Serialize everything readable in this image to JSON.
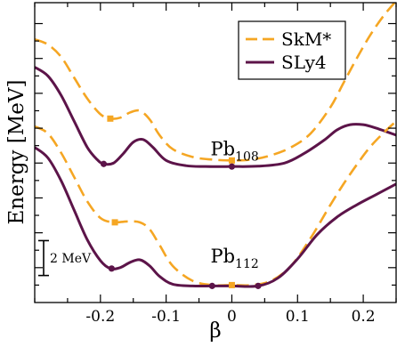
{
  "chart_data": {
    "type": "line",
    "xlabel": "β",
    "ylabel": "Energy [MeV]",
    "xlim": [
      -0.3,
      0.25
    ],
    "xticks": [
      {
        "value": -0.2,
        "label": "-0.2"
      },
      {
        "value": -0.1,
        "label": "-0.1"
      },
      {
        "value": 0,
        "label": "0"
      },
      {
        "value": 0.1,
        "label": "0.1"
      },
      {
        "value": 0.2,
        "label": "0.2"
      }
    ],
    "y_units_note": "relative energy; scale bar = 2 MeV",
    "ylim": [
      0,
      17.2
    ],
    "grid": false,
    "legend_position": "top-right",
    "legend": [
      {
        "key": "skm",
        "label": "SkM*",
        "style": "dashed",
        "color": "#f5a623"
      },
      {
        "key": "sly4",
        "label": "SLy4",
        "style": "solid",
        "color": "#5c1449"
      }
    ],
    "scale_bar": {
      "label": "2 MeV",
      "value": 2,
      "y_from": 1.55,
      "y_to": 3.55
    },
    "panels": [
      {
        "nucleus": "Pb",
        "mass_number": "108",
        "label_at": {
          "x": 0.0,
          "y": 8.45
        },
        "series": [
          {
            "key": "skm",
            "name": "SkM*",
            "x": [
              -0.3,
              -0.28,
              -0.26,
              -0.24,
              -0.22,
              -0.2,
              -0.185,
              -0.17,
              -0.155,
              -0.14,
              -0.125,
              -0.11,
              -0.09,
              -0.06,
              -0.03,
              0.0,
              0.03,
              0.06,
              0.09,
              0.12,
              0.15,
              0.17,
              0.19,
              0.21,
              0.23,
              0.25
            ],
            "y": [
              15.1,
              14.8,
              14.1,
              12.9,
              11.7,
              10.8,
              10.55,
              10.6,
              10.9,
              11.0,
              10.5,
              9.6,
              8.8,
              8.35,
              8.2,
              8.15,
              8.2,
              8.45,
              8.9,
              9.7,
              11.2,
              12.6,
              14.0,
              15.3,
              16.4,
              17.3
            ]
          },
          {
            "key": "sly4",
            "name": "SLy4",
            "x": [
              -0.3,
              -0.28,
              -0.26,
              -0.24,
              -0.22,
              -0.205,
              -0.195,
              -0.18,
              -0.165,
              -0.15,
              -0.135,
              -0.12,
              -0.1,
              -0.07,
              -0.04,
              0.0,
              0.04,
              0.08,
              0.11,
              0.14,
              0.16,
              0.18,
              0.2,
              0.22,
              0.25
            ],
            "y": [
              13.5,
              13.0,
              11.9,
              10.4,
              8.9,
              8.2,
              7.95,
              8.0,
              8.55,
              9.2,
              9.35,
              8.9,
              8.15,
              7.85,
              7.8,
              7.8,
              7.82,
              8.0,
              8.55,
              9.3,
              9.9,
              10.2,
              10.2,
              10.0,
              9.6
            ]
          }
        ],
        "markers": [
          {
            "series": "skm",
            "shape": "square",
            "x": -0.185,
            "y": 10.55
          },
          {
            "series": "skm",
            "shape": "square",
            "x": 0.0,
            "y": 8.15
          },
          {
            "series": "sly4",
            "shape": "circle",
            "x": -0.195,
            "y": 7.95
          },
          {
            "series": "sly4",
            "shape": "circle",
            "x": 0.0,
            "y": 7.8
          }
        ]
      },
      {
        "nucleus": "Pb",
        "mass_number": "112",
        "label_at": {
          "x": 0.0,
          "y": 2.3
        },
        "series": [
          {
            "key": "skm",
            "name": "SkM*",
            "x": [
              -0.3,
              -0.28,
              -0.26,
              -0.24,
              -0.22,
              -0.2,
              -0.18,
              -0.16,
              -0.14,
              -0.125,
              -0.11,
              -0.09,
              -0.06,
              -0.03,
              0.0,
              0.03,
              0.06,
              0.09,
              0.12,
              0.15,
              0.17,
              0.19,
              0.21,
              0.23,
              0.25
            ],
            "y": [
              10.1,
              9.7,
              8.6,
              7.2,
              5.8,
              4.85,
              4.6,
              4.65,
              4.6,
              4.2,
              3.3,
              2.1,
              1.25,
              1.0,
              1.0,
              1.0,
              1.25,
              2.1,
              3.7,
              5.6,
              6.8,
              7.9,
              8.9,
              9.7,
              10.4
            ]
          },
          {
            "key": "sly4",
            "name": "SLy4",
            "x": [
              -0.3,
              -0.28,
              -0.26,
              -0.24,
              -0.22,
              -0.2,
              -0.185,
              -0.17,
              -0.155,
              -0.14,
              -0.125,
              -0.11,
              -0.09,
              -0.06,
              -0.03,
              0.0,
              0.04,
              0.07,
              0.1,
              0.13,
              0.16,
              0.19,
              0.22,
              0.25
            ],
            "y": [
              8.9,
              8.3,
              7.0,
              5.3,
              3.6,
              2.4,
              1.95,
              2.0,
              2.3,
              2.45,
              2.1,
              1.5,
              1.05,
              0.95,
              0.95,
              0.95,
              0.95,
              1.4,
              2.5,
              3.9,
              4.9,
              5.6,
              6.2,
              6.8
            ]
          }
        ],
        "markers": [
          {
            "series": "skm",
            "shape": "square",
            "x": -0.178,
            "y": 4.6
          },
          {
            "series": "skm",
            "shape": "square",
            "x": 0.0,
            "y": 1.0
          },
          {
            "series": "sly4",
            "shape": "circle",
            "x": -0.183,
            "y": 1.95
          },
          {
            "series": "sly4",
            "shape": "circle",
            "x": -0.03,
            "y": 0.95
          },
          {
            "series": "sly4",
            "shape": "circle",
            "x": 0.04,
            "y": 0.95
          }
        ]
      }
    ]
  }
}
